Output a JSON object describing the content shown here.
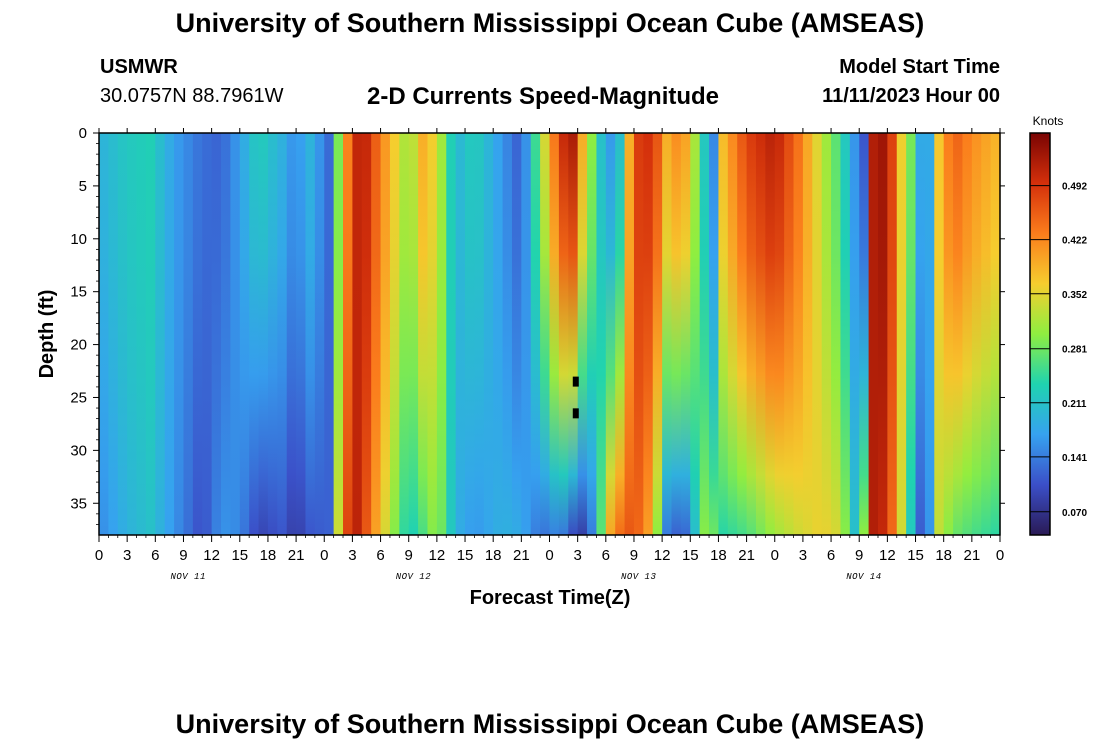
{
  "header": {
    "title": "University of Southern Mississippi Ocean Cube (AMSEAS)",
    "station": "USMWR",
    "coords": "30.0757N  88.7961W",
    "subtitle": "2-D Currents Speed-Magnitude",
    "model_start_label": "Model Start Time",
    "model_start_value": "11/11/2023 Hour 00"
  },
  "footer": {
    "title": "University of Southern Mississippi Ocean Cube (AMSEAS)"
  },
  "chart_data": {
    "type": "heatmap",
    "title": "2-D Currents Speed-Magnitude",
    "xlabel": "Forecast Time(Z)",
    "ylabel": "Depth (ft)",
    "x_range_hours": [
      0,
      96
    ],
    "ylim": [
      0,
      38
    ],
    "x_tick_labels": [
      "0",
      "3",
      "6",
      "9",
      "12",
      "15",
      "18",
      "21",
      "0",
      "3",
      "6",
      "9",
      "12",
      "15",
      "18",
      "21",
      "0",
      "3",
      "6",
      "9",
      "12",
      "15",
      "18",
      "21",
      "0",
      "3",
      "6",
      "9",
      "12",
      "15",
      "18",
      "21",
      "0"
    ],
    "y_tick_labels": [
      "0",
      "5",
      "10",
      "15",
      "20",
      "25",
      "30",
      "35"
    ],
    "day_labels": [
      "NOV 11",
      "NOV 12",
      "NOV 13",
      "NOV 14"
    ],
    "colorbar": {
      "unit": "Knots",
      "ticks": [
        "0.070",
        "0.141",
        "0.211",
        "0.281",
        "0.352",
        "0.422",
        "0.492"
      ],
      "tick_values": [
        0.07,
        0.141,
        0.211,
        0.281,
        0.352,
        0.422,
        0.492
      ],
      "vmin": 0.04,
      "vmax": 0.56,
      "palette": [
        "#2a1a55",
        "#3b4fc8",
        "#36a2f0",
        "#1fd3b0",
        "#8fee40",
        "#f6cd2e",
        "#fb7d1c",
        "#d4300b",
        "#7a0403"
      ]
    },
    "profile_hours": [
      0,
      3,
      5.5,
      8,
      11,
      13,
      15,
      17,
      19.5,
      21,
      22.3,
      24.7,
      25.8,
      27.1,
      28,
      30,
      33,
      34.5,
      36,
      38,
      40,
      43,
      45,
      47,
      49,
      50.2,
      51,
      51.6,
      53,
      54,
      55.3,
      57,
      59,
      60.5,
      62,
      63,
      64.2,
      65.5,
      66.5,
      69,
      72,
      74.5,
      77,
      79,
      80.5,
      81.5,
      82.5,
      84,
      85.5,
      87,
      87.8,
      88.5,
      89.5,
      91,
      93,
      96
    ],
    "profile_surface_kn": [
      0.19,
      0.22,
      0.23,
      0.17,
      0.13,
      0.12,
      0.17,
      0.23,
      0.19,
      0.15,
      0.2,
      0.12,
      0.35,
      0.49,
      0.53,
      0.43,
      0.3,
      0.39,
      0.35,
      0.19,
      0.23,
      0.16,
      0.11,
      0.3,
      0.48,
      0.54,
      0.5,
      0.37,
      0.26,
      0.16,
      0.17,
      0.48,
      0.5,
      0.39,
      0.43,
      0.37,
      0.24,
      0.15,
      0.38,
      0.48,
      0.52,
      0.44,
      0.33,
      0.25,
      0.16,
      0.11,
      0.52,
      0.54,
      0.36,
      0.25,
      0.14,
      0.18,
      0.37,
      0.46,
      0.42,
      0.38
    ],
    "profile_bottom_kn": [
      0.15,
      0.19,
      0.21,
      0.16,
      0.1,
      0.16,
      0.15,
      0.09,
      0.11,
      0.08,
      0.11,
      0.12,
      0.42,
      0.53,
      0.49,
      0.37,
      0.22,
      0.26,
      0.31,
      0.19,
      0.16,
      0.19,
      0.18,
      0.13,
      0.15,
      0.12,
      0.07,
      0.09,
      0.17,
      0.37,
      0.44,
      0.47,
      0.38,
      0.14,
      0.11,
      0.14,
      0.3,
      0.28,
      0.24,
      0.26,
      0.31,
      0.34,
      0.36,
      0.34,
      0.21,
      0.3,
      0.52,
      0.5,
      0.34,
      0.16,
      0.09,
      0.16,
      0.33,
      0.28,
      0.26,
      0.24
    ],
    "missing_cells": [
      {
        "hour": 50.8,
        "depth_ft": 23.5
      },
      {
        "hour": 50.8,
        "depth_ft": 26.5
      }
    ]
  }
}
